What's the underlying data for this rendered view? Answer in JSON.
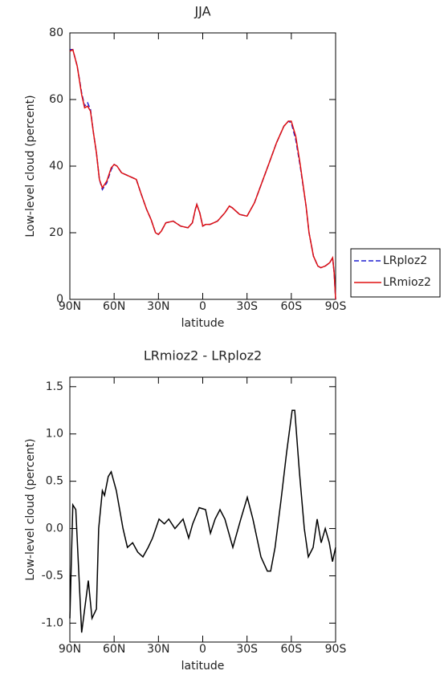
{
  "chart_data": [
    {
      "type": "line",
      "title": "JJA",
      "xlabel": "latitude",
      "ylabel": "Low-level cloud (percent)",
      "xlim": [
        90,
        -90
      ],
      "xticks": [
        {
          "value": 90,
          "label": "90N"
        },
        {
          "value": 60,
          "label": "60N"
        },
        {
          "value": 30,
          "label": "30N"
        },
        0,
        {
          "value": -30,
          "label": "30S"
        },
        {
          "value": -60,
          "label": "60S"
        },
        {
          "value": -90,
          "label": "90S"
        }
      ],
      "ylim": [
        0,
        80
      ],
      "yticks": [
        0,
        20,
        40,
        60,
        80
      ],
      "legend": "outside right",
      "x": [
        90,
        88,
        85,
        82,
        80,
        78,
        76,
        74,
        72,
        70,
        68,
        65,
        62,
        60,
        58,
        55,
        50,
        45,
        42,
        38,
        35,
        32,
        30,
        28,
        25,
        20,
        15,
        10,
        7,
        5,
        4,
        2,
        0,
        -2,
        -5,
        -10,
        -15,
        -18,
        -20,
        -25,
        -30,
        -35,
        -40,
        -45,
        -50,
        -55,
        -58,
        -60,
        -63,
        -66,
        -70,
        -72,
        -75,
        -78,
        -80,
        -83,
        -86,
        -88,
        -89,
        -90
      ],
      "series": [
        {
          "name": "LRploz2",
          "color": "#1f1fd0",
          "line_style": "dashed",
          "values": [
            75,
            75,
            70,
            62,
            58,
            59,
            57,
            50,
            44,
            36,
            33,
            35,
            39,
            40.5,
            40,
            38,
            37,
            36,
            32,
            27,
            24,
            20,
            19.5,
            20.5,
            23,
            23.5,
            22,
            21.5,
            23,
            27,
            28.5,
            26,
            22,
            22.5,
            22.5,
            23.5,
            26,
            28,
            27.5,
            25.5,
            25,
            29,
            35,
            41,
            47,
            52,
            53.5,
            53,
            48,
            40,
            28,
            20,
            13,
            10,
            9.5,
            10,
            11,
            12.5,
            8,
            0
          ]
        },
        {
          "name": "LRmioz2",
          "color": "#e01010",
          "line_style": "solid",
          "values": [
            74.5,
            75,
            70,
            61.5,
            57.5,
            58,
            56.5,
            50,
            44,
            36,
            33.5,
            35.5,
            39.5,
            40.5,
            40,
            38,
            37,
            36,
            32,
            27,
            24,
            20,
            19.5,
            20.5,
            23,
            23.5,
            22,
            21.5,
            23,
            27,
            28.5,
            26,
            22,
            22.5,
            22.5,
            23.5,
            26,
            28,
            27.5,
            25.5,
            25,
            29,
            35,
            41,
            47,
            52,
            53.5,
            53.5,
            49,
            40.5,
            28,
            20,
            13,
            10,
            9.5,
            10,
            11,
            12.5,
            8,
            0
          ]
        }
      ]
    },
    {
      "type": "line",
      "title": "LRmioz2 - LRploz2",
      "xlabel": "latitude",
      "ylabel": "Low-level cloud (percent)",
      "xlim": [
        90,
        -90
      ],
      "xticks": [
        {
          "value": 90,
          "label": "90N"
        },
        {
          "value": 60,
          "label": "60N"
        },
        {
          "value": 30,
          "label": "30N"
        },
        0,
        {
          "value": -30,
          "label": "30S"
        },
        {
          "value": -60,
          "label": "60S"
        },
        {
          "value": -90,
          "label": "90S"
        }
      ],
      "ylim": [
        -1.2,
        1.6
      ],
      "yticks": [
        {
          "value": -1.0,
          "label": "-1.0"
        },
        {
          "value": -0.5,
          "label": "-0.5"
        },
        {
          "value": 0,
          "label": "0.0"
        },
        {
          "value": 0.5,
          "label": "0.5"
        },
        {
          "value": 1.0,
          "label": "1.0"
        },
        {
          "value": 1.5,
          "label": "1.5"
        }
      ],
      "x": [
        90,
        88,
        86,
        82,
        77.5,
        75,
        72,
        70.5,
        68,
        66.5,
        64,
        62,
        58.5,
        54,
        51,
        47.5,
        44,
        40.5,
        37,
        34,
        29.6,
        26,
        23,
        18.8,
        13.3,
        9.5,
        6.8,
        2.4,
        -1.9,
        -5.2,
        -8.4,
        -11.7,
        -15,
        -20.4,
        -25.8,
        -30.2,
        -34,
        -39.4,
        -43.8,
        -46,
        -49,
        -53,
        -56.8,
        -60.6,
        -62.3,
        -65.5,
        -68.8,
        -71.5,
        -74.8,
        -77.5,
        -80.2,
        -83,
        -85.7,
        -87.9,
        -90
      ],
      "series": [
        {
          "name": "LRmioz2 - LRploz2",
          "color": "#000000",
          "line_style": "solid",
          "values": [
            -0.95,
            0.25,
            0.2,
            -1.1,
            -0.55,
            -0.95,
            -0.85,
            0,
            0.4,
            0.35,
            0.55,
            0.6,
            0.4,
            0,
            -0.2,
            -0.15,
            -0.25,
            -0.3,
            -0.2,
            -0.1,
            0.1,
            0.05,
            0.1,
            0,
            0.1,
            -0.1,
            0.05,
            0.22,
            0.2,
            -0.05,
            0.1,
            0.2,
            0.1,
            -0.2,
            0.1,
            0.33,
            0.1,
            -0.3,
            -0.45,
            -0.45,
            -0.2,
            0.3,
            0.8,
            1.25,
            1.25,
            0.6,
            0,
            -0.3,
            -0.2,
            0.1,
            -0.15,
            0,
            -0.15,
            -0.35,
            -0.2
          ]
        }
      ]
    }
  ]
}
